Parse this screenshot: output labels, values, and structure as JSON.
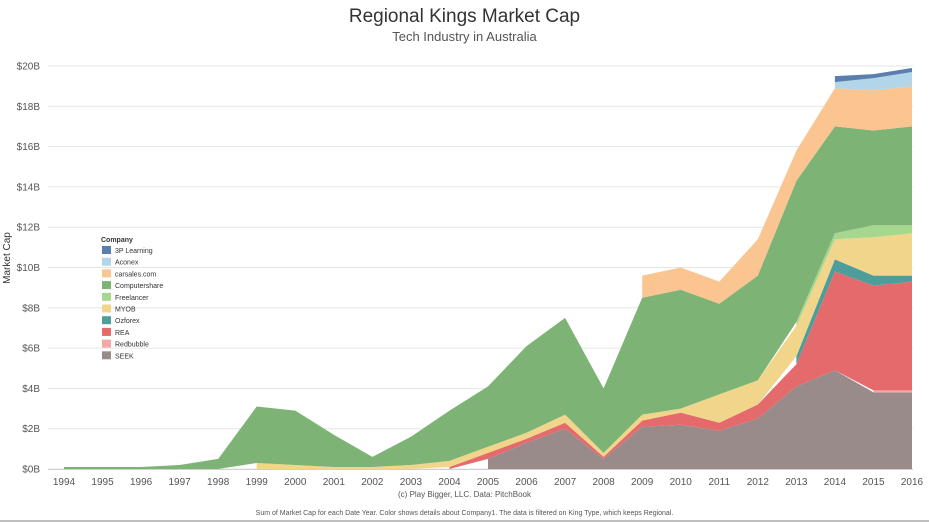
{
  "header": {
    "title": "Regional Kings Market Cap",
    "subtitle": "Tech Industry in Australia"
  },
  "footer": {
    "credit": "(c) Play Bigger, LLC. Data: PitchBook",
    "note": "Sum of Market Cap for each Date Year.  Color shows details about Company1. The data is filtered on King Type, which keeps Regional."
  },
  "chart_data": {
    "type": "area",
    "stacked": true,
    "grid": "horizontal",
    "legend_position": "left-middle",
    "legend_title": "Company",
    "ylabel": "Market Cap",
    "ylim": [
      0,
      20
    ],
    "y_ticks": [
      "$0B",
      "$2B",
      "$4B",
      "$6B",
      "$8B",
      "$10B",
      "$12B",
      "$14B",
      "$16B",
      "$18B",
      "$20B"
    ],
    "x": [
      "1994",
      "1995",
      "1996",
      "1997",
      "1998",
      "1999",
      "2000",
      "2001",
      "2002",
      "2003",
      "2004",
      "2005",
      "2006",
      "2007",
      "2008",
      "2009",
      "2010",
      "2011",
      "2012",
      "2013",
      "2014",
      "2015",
      "2016"
    ],
    "series": [
      {
        "name": "SEEK",
        "color": "#9a8b8b",
        "values": [
          null,
          null,
          null,
          null,
          null,
          null,
          null,
          null,
          null,
          null,
          null,
          0.5,
          1.3,
          2.0,
          0.5,
          2.1,
          2.2,
          1.9,
          2.5,
          4.1,
          4.9,
          3.8,
          3.8
        ]
      },
      {
        "name": "Redbubble",
        "color": "#f4a8a6",
        "values": [
          null,
          null,
          null,
          null,
          null,
          null,
          null,
          null,
          null,
          null,
          null,
          null,
          null,
          null,
          null,
          null,
          null,
          null,
          null,
          null,
          null,
          0.1,
          0.1
        ]
      },
      {
        "name": "REA",
        "color": "#e46a6b",
        "values": [
          null,
          null,
          null,
          null,
          null,
          null,
          null,
          null,
          null,
          null,
          0.1,
          0.3,
          0.2,
          0.3,
          0.1,
          0.3,
          0.6,
          0.4,
          0.7,
          1.1,
          4.9,
          5.2,
          5.4
        ]
      },
      {
        "name": "Ozforex",
        "color": "#4d9e9b",
        "values": [
          null,
          null,
          null,
          null,
          null,
          null,
          null,
          null,
          null,
          null,
          null,
          null,
          null,
          null,
          null,
          null,
          null,
          null,
          null,
          0.4,
          0.6,
          0.5,
          0.3
        ]
      },
      {
        "name": "MYOB",
        "color": "#f1d58b",
        "values": [
          null,
          null,
          null,
          null,
          null,
          0.3,
          0.2,
          0.1,
          0.1,
          0.2,
          0.3,
          0.3,
          0.3,
          0.4,
          0.2,
          0.3,
          0.2,
          1.4,
          1.2,
          1.5,
          1.0,
          1.9,
          2.1
        ]
      },
      {
        "name": "Freelancer",
        "color": "#a6d78f",
        "values": [
          null,
          null,
          null,
          null,
          null,
          null,
          null,
          null,
          null,
          null,
          null,
          null,
          null,
          null,
          null,
          null,
          null,
          null,
          null,
          0.2,
          0.3,
          0.6,
          0.4
        ]
      },
      {
        "name": "Computershare",
        "color": "#7db475",
        "values": [
          0.1,
          0.1,
          0.1,
          0.2,
          0.5,
          2.8,
          2.7,
          1.6,
          0.5,
          1.4,
          2.5,
          3.0,
          4.3,
          4.8,
          3.2,
          5.8,
          5.9,
          4.5,
          5.2,
          7.0,
          5.3,
          4.7,
          4.9
        ]
      },
      {
        "name": "carsales.com",
        "color": "#fbc591",
        "values": [
          null,
          null,
          null,
          null,
          null,
          null,
          null,
          null,
          null,
          null,
          null,
          null,
          null,
          null,
          null,
          1.1,
          1.1,
          1.1,
          1.8,
          1.5,
          1.9,
          2.0,
          2.0
        ]
      },
      {
        "name": "Aconex",
        "color": "#b2d5ea",
        "values": [
          null,
          null,
          null,
          null,
          null,
          null,
          null,
          null,
          null,
          null,
          null,
          null,
          null,
          null,
          null,
          null,
          null,
          null,
          null,
          null,
          0.3,
          0.6,
          0.7
        ]
      },
      {
        "name": "3P Learning",
        "color": "#5a7fad",
        "values": [
          null,
          null,
          null,
          null,
          null,
          null,
          null,
          null,
          null,
          null,
          null,
          null,
          null,
          null,
          null,
          null,
          null,
          null,
          null,
          null,
          0.3,
          0.2,
          0.2
        ]
      }
    ],
    "legend_order": [
      "3P Learning",
      "Aconex",
      "carsales.com",
      "Computershare",
      "Freelancer",
      "MYOB",
      "Ozforex",
      "REA",
      "Redbubble",
      "SEEK"
    ]
  }
}
